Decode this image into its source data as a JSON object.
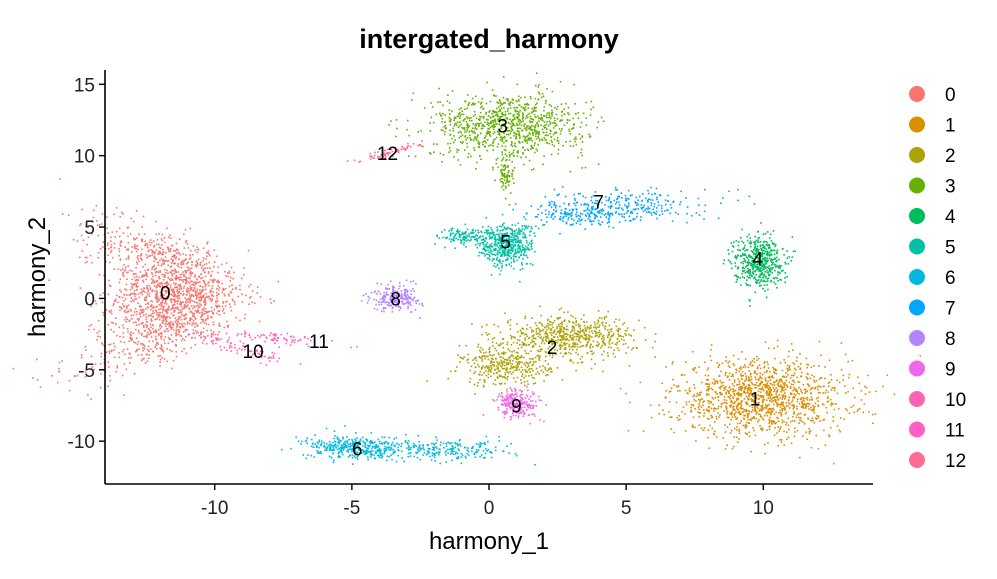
{
  "chart_data": {
    "type": "scatter",
    "title": "intergated_harmony",
    "xlabel": "harmony_1",
    "ylabel": "harmony_2",
    "xlim": [
      -14,
      14
    ],
    "ylim": [
      -13,
      16
    ],
    "x_ticks": [
      -10,
      -5,
      0,
      5,
      10
    ],
    "y_ticks": [
      -10,
      -5,
      0,
      5,
      10,
      15
    ],
    "x_tick_labels": [
      "-10",
      "-5",
      "0",
      "5",
      "10"
    ],
    "y_tick_labels": [
      "-10",
      "-5",
      "0",
      "5",
      "10",
      "15"
    ],
    "grid": false,
    "legend_position": "right",
    "legend": [
      "0",
      "1",
      "2",
      "3",
      "4",
      "5",
      "6",
      "7",
      "8",
      "9",
      "10",
      "11",
      "12"
    ],
    "clusters": [
      {
        "label": "0",
        "color": "#F8766D",
        "center": [
          -11.8,
          0.4
        ]
      },
      {
        "label": "1",
        "color": "#DB8E00",
        "center": [
          9.7,
          -7.0
        ]
      },
      {
        "label": "2",
        "color": "#AEA200",
        "center": [
          2.3,
          -3.4
        ]
      },
      {
        "label": "3",
        "color": "#64B200",
        "center": [
          0.5,
          12.1
        ]
      },
      {
        "label": "4",
        "color": "#00BD5C",
        "center": [
          9.8,
          2.8
        ]
      },
      {
        "label": "5",
        "color": "#00C1A7",
        "center": [
          0.6,
          4.0
        ]
      },
      {
        "label": "6",
        "color": "#00BADE",
        "center": [
          -4.8,
          -10.5
        ]
      },
      {
        "label": "7",
        "color": "#00A6FF",
        "center": [
          4.0,
          6.8
        ]
      },
      {
        "label": "8",
        "color": "#B385FF",
        "center": [
          -3.4,
          0.0
        ]
      },
      {
        "label": "9",
        "color": "#EF67EB",
        "center": [
          1.0,
          -7.5
        ]
      },
      {
        "label": "10",
        "color": "#FF63B6",
        "center": [
          -8.6,
          -3.7
        ]
      },
      {
        "label": "11",
        "color": "#FF61C3",
        "center": [
          -6.2,
          -3.0
        ]
      },
      {
        "label": "12",
        "color": "#FF6C91",
        "center": [
          -3.7,
          10.2
        ]
      }
    ]
  }
}
